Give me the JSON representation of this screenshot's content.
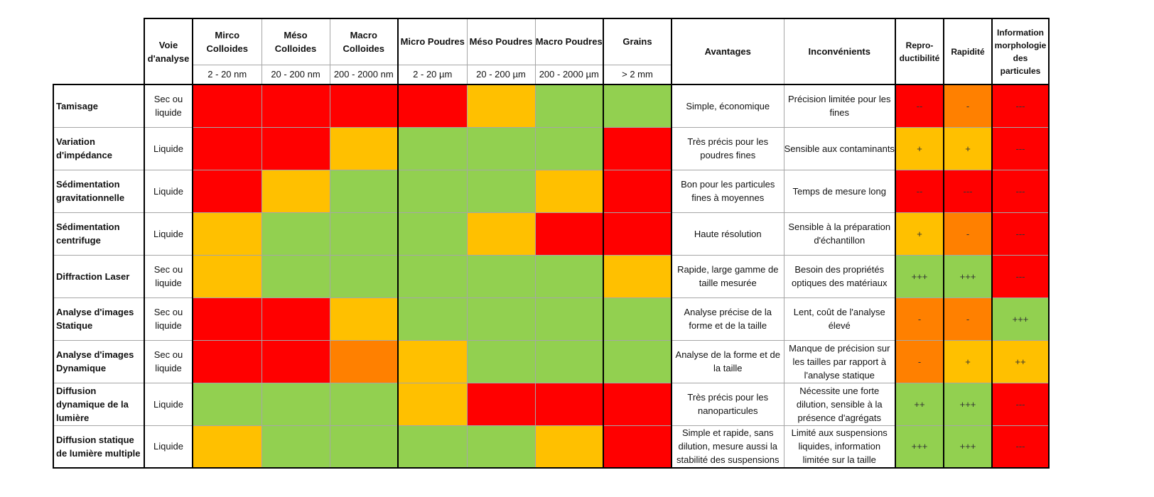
{
  "header": {
    "voie": "Voie d'analyse",
    "sizes": [
      {
        "name": "Mirco Colloides",
        "range": "2 - 20 nm"
      },
      {
        "name": "Méso Colloides",
        "range": "20 - 200 nm"
      },
      {
        "name": "Macro Colloides",
        "range": "200 - 2000 nm"
      },
      {
        "name": "Micro Poudres",
        "range": "2 - 20 µm"
      },
      {
        "name": "Méso Poudres",
        "range": "20 - 200 µm"
      },
      {
        "name": "Macro Poudres",
        "range": "200 - 2000 µm"
      },
      {
        "name": "Grains",
        "range": "> 2 mm"
      }
    ],
    "avantages": "Avantages",
    "inconvenients": "Inconvénients",
    "repro": "Repro-ductibilité",
    "rapidite": "Rapidité",
    "morpho": "Information morphologie des particules"
  },
  "legend_colors": {
    "red": "#ff0000",
    "yellow": "#ffc000",
    "orange": "#ff8000",
    "green": "#92d050"
  },
  "rows": [
    {
      "method": "Tamisage",
      "voie": "Sec ou liquide",
      "cells": [
        "r",
        "r",
        "r",
        "r",
        "o",
        "g",
        "g"
      ],
      "avantages": "Simple, économique",
      "inconvenients": "Précision limitée pour les fines",
      "repro": {
        "v": "--",
        "c": "r"
      },
      "rapidite": {
        "v": "-",
        "c": "d"
      },
      "morpho": {
        "v": "---",
        "c": "r"
      }
    },
    {
      "method": "Variation d'impédance",
      "voie": "Liquide",
      "cells": [
        "r",
        "r",
        "o",
        "g",
        "g",
        "g",
        "r"
      ],
      "avantages": "Très précis pour les poudres fines",
      "inconvenients": "Sensible aux contaminants",
      "repro": {
        "v": "+",
        "c": "o"
      },
      "rapidite": {
        "v": "+",
        "c": "o"
      },
      "morpho": {
        "v": "---",
        "c": "r"
      }
    },
    {
      "method": "Sédimentation gravitationnelle",
      "voie": "Liquide",
      "cells": [
        "r",
        "o",
        "g",
        "g",
        "g",
        "o",
        "r"
      ],
      "avantages": "Bon pour les particules fines à moyennes",
      "inconvenients": "Temps de mesure long",
      "repro": {
        "v": "--",
        "c": "r"
      },
      "rapidite": {
        "v": "---",
        "c": "r"
      },
      "morpho": {
        "v": "---",
        "c": "r"
      }
    },
    {
      "method": "Sédimentation centrifuge",
      "voie": "Liquide",
      "cells": [
        "o",
        "g",
        "g",
        "g",
        "o",
        "r",
        "r"
      ],
      "avantages": "Haute résolution",
      "inconvenients": "Sensible à la préparation d'échantillon",
      "repro": {
        "v": "+",
        "c": "o"
      },
      "rapidite": {
        "v": "-",
        "c": "d"
      },
      "morpho": {
        "v": "---",
        "c": "r"
      }
    },
    {
      "method": "Diffraction Laser",
      "voie": "Sec ou liquide",
      "cells": [
        "o",
        "g",
        "g",
        "g",
        "g",
        "g",
        "o"
      ],
      "avantages": "Rapide, large gamme de taille mesurée",
      "inconvenients": "Besoin des propriétés optiques des matériaux",
      "repro": {
        "v": "+++",
        "c": "g"
      },
      "rapidite": {
        "v": "+++",
        "c": "g"
      },
      "morpho": {
        "v": "---",
        "c": "r"
      }
    },
    {
      "method": "Analyse d'images Statique",
      "voie": "Sec ou liquide",
      "cells": [
        "r",
        "r",
        "o",
        "g",
        "g",
        "g",
        "g"
      ],
      "avantages": "Analyse précise de la forme et de la taille",
      "inconvenients": "Lent, coût de l'analyse élevé",
      "repro": {
        "v": "-",
        "c": "d"
      },
      "rapidite": {
        "v": "-",
        "c": "d"
      },
      "morpho": {
        "v": "+++",
        "c": "g"
      }
    },
    {
      "method": "Analyse d'images Dynamique",
      "voie": "Sec ou liquide",
      "cells": [
        "r",
        "r",
        "d",
        "o",
        "g",
        "g",
        "g"
      ],
      "avantages": "Analyse de la forme et de la taille",
      "inconvenients": "Manque de précision sur les tailles par rapport à l'analyse statique",
      "repro": {
        "v": "-",
        "c": "d"
      },
      "rapidite": {
        "v": "+",
        "c": "o"
      },
      "morpho": {
        "v": "++",
        "c": "o"
      }
    },
    {
      "method": "Diffusion dynamique de la lumière",
      "voie": "Liquide",
      "cells": [
        "g",
        "g",
        "g",
        "o",
        "r",
        "r",
        "r"
      ],
      "avantages": "Très précis pour les nanoparticules",
      "inconvenients": "Nécessite une forte dilution, sensible à la présence d'agrégats",
      "repro": {
        "v": "++",
        "c": "g"
      },
      "rapidite": {
        "v": "+++",
        "c": "g"
      },
      "morpho": {
        "v": "---",
        "c": "r"
      }
    },
    {
      "method": "Diffusion statique de lumière multiple",
      "voie": "Liquide",
      "cells": [
        "o",
        "g",
        "g",
        "g",
        "g",
        "o",
        "r"
      ],
      "avantages": "Simple et rapide, sans dilution, mesure aussi la stabilité des suspensions",
      "inconvenients": "Limité aux suspensions liquides, information limitée sur la taille",
      "repro": {
        "v": "+++",
        "c": "g"
      },
      "rapidite": {
        "v": "+++",
        "c": "g"
      },
      "morpho": {
        "v": "---",
        "c": "r"
      }
    }
  ]
}
